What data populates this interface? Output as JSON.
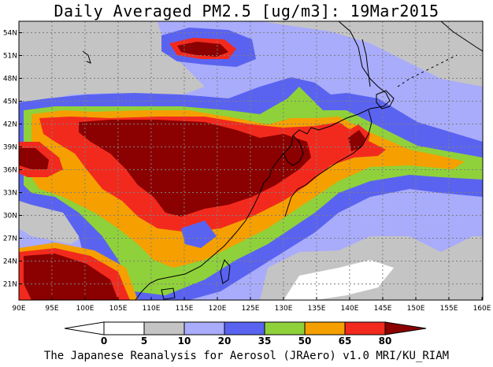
{
  "title": "Daily Averaged PM2.5 [ug/m3]: 19Mar2015",
  "credit": "The Japanese Reanalysis for Aerosol (JRAero) v1.0 MRI/KU_RIAM",
  "lat_ticks": [
    "54N",
    "51N",
    "48N",
    "45N",
    "42N",
    "39N",
    "36N",
    "33N",
    "30N",
    "27N",
    "24N",
    "21N"
  ],
  "lon_ticks": [
    "90E",
    "95E",
    "100E",
    "105E",
    "110E",
    "115E",
    "120E",
    "125E",
    "130E",
    "135E",
    "140E",
    "145E",
    "150E",
    "155E",
    "160E"
  ],
  "colorbar": {
    "levels": [
      "0",
      "5",
      "10",
      "20",
      "35",
      "50",
      "65",
      "80"
    ],
    "colors": [
      "#ffffff",
      "#c4c4c4",
      "#a9acfb",
      "#5a63f0",
      "#8fd13a",
      "#f5a000",
      "#f22a1e",
      "#8b0000"
    ]
  },
  "palette": {
    "white": "#ffffff",
    "gray": "#c4c4c4",
    "lightblue": "#a9acfb",
    "blue": "#5a63f0",
    "green": "#8fd13a",
    "orange": "#f5a000",
    "red": "#f22a1e",
    "darkred": "#8b0000"
  }
}
